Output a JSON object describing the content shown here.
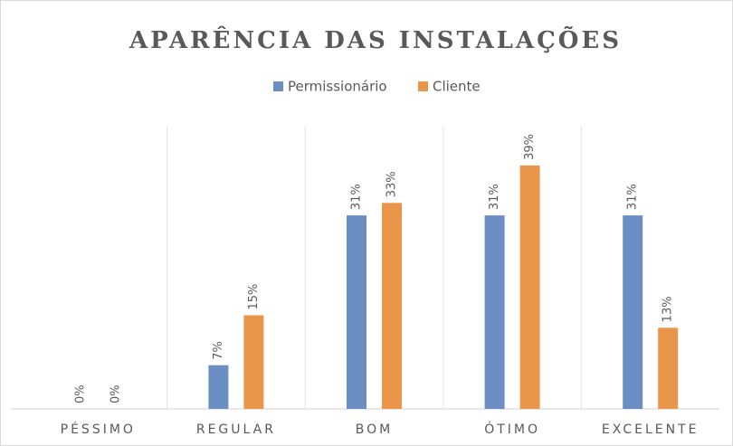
{
  "chart_data": {
    "type": "bar",
    "title": "APARÊNCIA DAS INSTALAÇÕES",
    "categories": [
      "PÉSSIMO",
      "REGULAR",
      "BOM",
      "ÓTIMO",
      "EXCELENTE"
    ],
    "series": [
      {
        "name": "Permissionário",
        "color": "#6b8fc2",
        "values": [
          0,
          7,
          31,
          31,
          31
        ],
        "value_labels": [
          "0%",
          "7%",
          "31%",
          "31%",
          "31%"
        ]
      },
      {
        "name": "Cliente",
        "color": "#e9954a",
        "values": [
          0,
          15,
          33,
          39,
          13
        ],
        "value_labels": [
          "0%",
          "15%",
          "33%",
          "39%",
          "13%"
        ]
      }
    ],
    "legend": "top",
    "grid": true
  }
}
